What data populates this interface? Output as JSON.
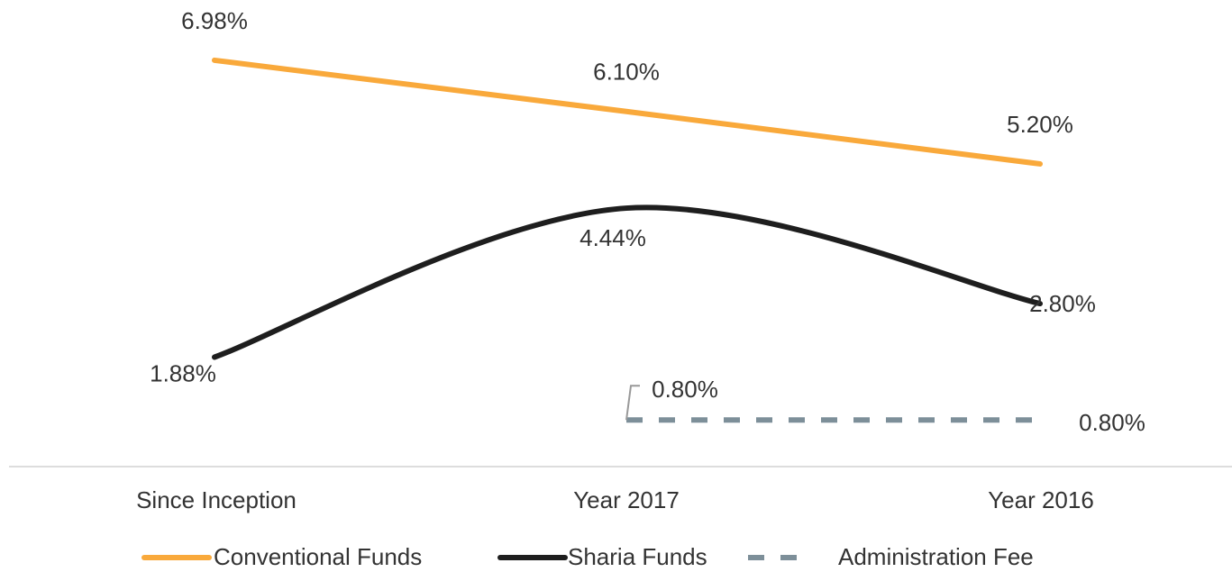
{
  "chart_data": {
    "type": "line",
    "categories": [
      "Since Inception",
      "Year 2017",
      "Year 2016"
    ],
    "series": [
      {
        "name": "Conventional Funds",
        "color": "#f9a93b",
        "values": [
          6.98,
          6.1,
          5.2
        ],
        "value_labels": [
          "6.98%",
          "6.10%",
          "5.20%"
        ],
        "smooth": false,
        "line_style": "solid"
      },
      {
        "name": "Sharia Funds",
        "color": "#1e1e1e",
        "values": [
          1.88,
          4.44,
          2.8
        ],
        "value_labels": [
          "1.88%",
          "4.44%",
          "2.80%"
        ],
        "smooth": true,
        "line_style": "solid"
      },
      {
        "name": "Administration Fee",
        "color": "#7d8f99",
        "values": [
          null,
          0.8,
          0.8
        ],
        "value_labels": [
          null,
          "0.80%",
          "0.80%"
        ],
        "smooth": false,
        "line_style": "dashed"
      }
    ],
    "ylim": [
      0,
      8
    ],
    "legend": "bottom"
  }
}
